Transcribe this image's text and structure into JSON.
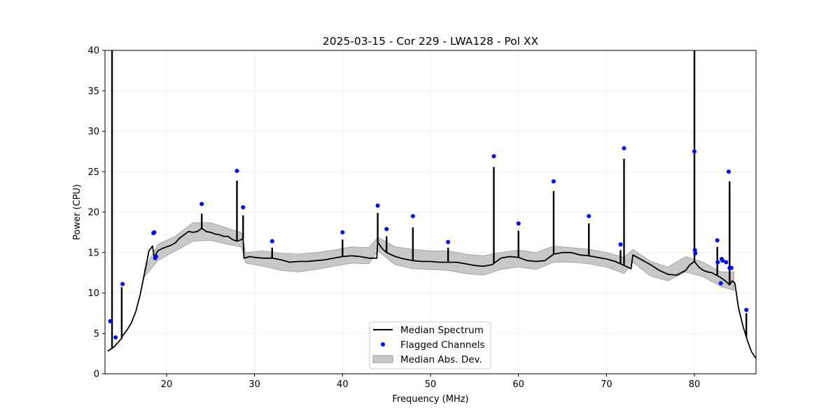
{
  "chart_data": {
    "type": "line",
    "title": "2025-03-15 - Cor 229 - LWA128 - Pol XX",
    "xlabel": "Frequency (MHz)",
    "ylabel": "Power (CPU)",
    "xlim": [
      13.0,
      87.0
    ],
    "ylim": [
      0,
      40
    ],
    "xticks": [
      20,
      30,
      40,
      50,
      60,
      70,
      80
    ],
    "yticks": [
      0,
      5,
      10,
      15,
      20,
      25,
      30,
      35,
      40
    ],
    "grid": true,
    "legend_position": "lower-center",
    "colors": {
      "median": "#000000",
      "flagged": "#0000ff",
      "mad_fill": "#c8c8c8",
      "mad_edge": "#9a9a9a"
    },
    "series": [
      {
        "name": "Median Spectrum",
        "kind": "line",
        "x": [
          13.3,
          14.0,
          14.9,
          15.0,
          15.5,
          16.0,
          16.5,
          17.0,
          17.5,
          18.0,
          18.4,
          18.6,
          19.0,
          19.5,
          20.0,
          20.5,
          21.0,
          21.5,
          22.0,
          22.5,
          23.0,
          23.5,
          24.0,
          24.5,
          25.0,
          25.5,
          26.0,
          26.5,
          27.0,
          27.5,
          28.0,
          28.5,
          28.7,
          28.8,
          29.5,
          30.0,
          31.0,
          32.0,
          33.0,
          34.0,
          35.0,
          36.0,
          37.0,
          38.0,
          39.0,
          40.0,
          41.0,
          42.0,
          43.0,
          43.9,
          44.0,
          44.5,
          45.0,
          46.0,
          47.0,
          48.0,
          49.0,
          50.0,
          51.0,
          52.0,
          53.0,
          54.0,
          55.0,
          56.0,
          57.0,
          58.0,
          59.0,
          60.0,
          61.0,
          62.0,
          63.0,
          64.0,
          65.0,
          66.0,
          67.0,
          68.0,
          69.0,
          70.0,
          71.0,
          72.0,
          72.8,
          73.0,
          74.0,
          75.0,
          76.0,
          77.0,
          78.0,
          79.0,
          79.5,
          80.0,
          80.5,
          81.0,
          81.5,
          82.0,
          82.5,
          83.0,
          83.5,
          84.0,
          84.3,
          84.6,
          85.0,
          85.5,
          86.0,
          86.5,
          87.0
        ],
        "y": [
          2.8,
          3.3,
          4.4,
          4.7,
          5.4,
          6.3,
          7.7,
          9.8,
          12.5,
          15.2,
          15.8,
          14.4,
          15.2,
          15.5,
          15.7,
          15.9,
          16.2,
          16.8,
          17.2,
          17.6,
          17.5,
          17.6,
          18.0,
          17.6,
          17.5,
          17.3,
          17.2,
          17.0,
          17.0,
          16.6,
          16.4,
          16.6,
          16.8,
          14.3,
          14.5,
          14.4,
          14.3,
          14.3,
          14.1,
          13.8,
          13.9,
          13.9,
          14.0,
          14.1,
          14.3,
          14.5,
          14.6,
          14.5,
          14.3,
          14.3,
          16.3,
          15.5,
          15.0,
          14.5,
          14.2,
          14.0,
          13.9,
          13.9,
          13.8,
          13.8,
          13.8,
          13.6,
          13.4,
          13.3,
          13.5,
          14.3,
          14.5,
          14.4,
          14.0,
          13.9,
          14.0,
          14.8,
          15.0,
          15.0,
          14.7,
          14.6,
          14.4,
          14.2,
          13.9,
          13.4,
          13.0,
          14.7,
          14.1,
          13.5,
          12.8,
          12.3,
          12.2,
          12.8,
          13.5,
          13.9,
          13.2,
          12.8,
          12.6,
          12.5,
          12.2,
          11.9,
          11.5,
          11.0,
          11.5,
          11.2,
          8.2,
          6.0,
          4.2,
          2.7,
          1.9
        ]
      },
      {
        "name": "Flagged Channels",
        "kind": "scatter",
        "x": [
          13.6,
          14.2,
          15.0,
          18.5,
          18.6,
          18.7,
          18.8,
          24.0,
          28.0,
          28.7,
          32.0,
          40.0,
          44.0,
          45.0,
          48.0,
          52.0,
          57.2,
          60.0,
          64.0,
          68.0,
          71.6,
          72.0,
          80.0,
          80.05,
          80.1,
          82.6,
          82.65,
          83.0,
          83.1,
          83.2,
          83.6,
          83.9,
          84.0,
          84.2,
          85.9
        ],
        "y": [
          6.5,
          4.5,
          11.1,
          17.4,
          17.5,
          14.3,
          14.5,
          21.0,
          25.1,
          20.6,
          16.4,
          17.5,
          20.8,
          17.9,
          19.5,
          16.3,
          26.9,
          18.6,
          23.8,
          19.5,
          16.0,
          27.9,
          27.5,
          15.3,
          14.9,
          16.5,
          13.8,
          11.2,
          14.2,
          14.0,
          13.8,
          25.0,
          13.1,
          13.1,
          7.9
        ]
      },
      {
        "name": "Median Abs. Dev.",
        "kind": "band",
        "x": [
          17.5,
          19.0,
          21.0,
          23.0,
          25.0,
          27.0,
          28.5,
          29.0,
          31.0,
          33.0,
          35.0,
          37.0,
          39.0,
          41.0,
          43.0,
          44.0,
          46.0,
          48.0,
          50.0,
          52.0,
          54.0,
          56.0,
          58.0,
          60.0,
          62.0,
          64.0,
          66.0,
          68.0,
          70.0,
          72.0,
          73.0,
          75.0,
          77.0,
          79.0,
          81.0,
          83.0,
          84.5
        ],
        "y_low": [
          12.0,
          14.0,
          15.2,
          16.4,
          16.5,
          16.0,
          15.7,
          13.7,
          13.3,
          12.8,
          12.6,
          12.9,
          13.3,
          13.7,
          13.6,
          15.2,
          13.5,
          13.0,
          12.9,
          12.8,
          12.4,
          12.2,
          12.9,
          13.2,
          12.9,
          13.8,
          13.8,
          13.6,
          13.2,
          12.4,
          13.8,
          12.1,
          11.5,
          12.6,
          12.0,
          10.8,
          10.3
        ],
        "y_high": [
          13.0,
          16.0,
          17.0,
          18.7,
          18.7,
          18.0,
          17.5,
          15.0,
          15.2,
          14.9,
          14.8,
          15.0,
          15.3,
          15.7,
          15.6,
          16.9,
          15.7,
          15.4,
          15.2,
          15.2,
          14.8,
          14.6,
          15.0,
          15.3,
          15.0,
          15.8,
          15.6,
          15.4,
          15.0,
          14.4,
          15.4,
          13.9,
          13.2,
          14.5,
          13.8,
          12.6,
          12.6
        ]
      }
    ],
    "spikes": [
      {
        "x": 13.8,
        "y": 40.0
      },
      {
        "x": 14.9,
        "y": 10.7
      },
      {
        "x": 24.0,
        "y": 19.8
      },
      {
        "x": 28.0,
        "y": 23.9
      },
      {
        "x": 28.7,
        "y": 19.6
      },
      {
        "x": 32.0,
        "y": 15.6
      },
      {
        "x": 40.0,
        "y": 16.6
      },
      {
        "x": 44.0,
        "y": 19.9
      },
      {
        "x": 45.0,
        "y": 17.0
      },
      {
        "x": 48.0,
        "y": 18.1
      },
      {
        "x": 52.0,
        "y": 15.6
      },
      {
        "x": 57.2,
        "y": 25.6
      },
      {
        "x": 60.0,
        "y": 17.7
      },
      {
        "x": 64.0,
        "y": 22.6
      },
      {
        "x": 68.0,
        "y": 18.6
      },
      {
        "x": 71.6,
        "y": 15.3
      },
      {
        "x": 72.0,
        "y": 26.6
      },
      {
        "x": 80.0,
        "y": 40.0
      },
      {
        "x": 82.6,
        "y": 15.7
      },
      {
        "x": 84.0,
        "y": 23.8
      },
      {
        "x": 85.9,
        "y": 7.5
      }
    ]
  }
}
